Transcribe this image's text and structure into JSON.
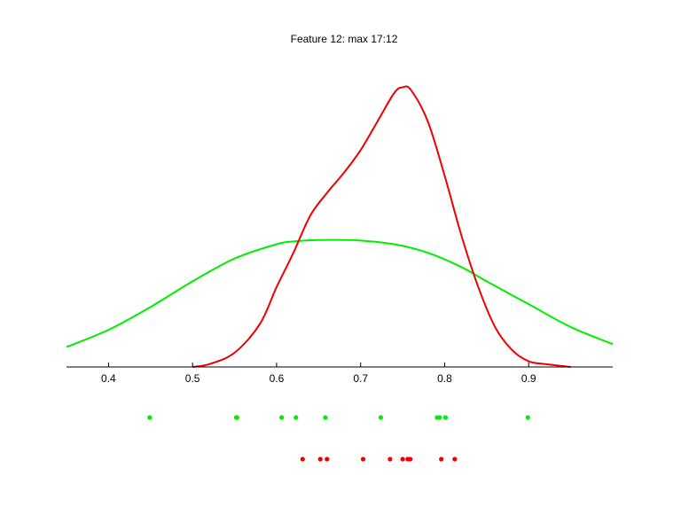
{
  "chart_data": {
    "type": "line",
    "title": "Feature 12: max 17:12",
    "xlim": [
      0.35,
      1.0
    ],
    "ylim": [
      0,
      1
    ],
    "xticks": [
      0.4,
      0.5,
      0.6,
      0.7,
      0.8,
      0.9
    ],
    "xtick_labels": [
      "0.4",
      "0.5",
      "0.6",
      "0.7",
      "0.8",
      "0.9"
    ],
    "y_axis_visible": false,
    "grid": false,
    "series": [
      {
        "color": "#00ee00",
        "x": [
          0.35,
          0.4,
          0.45,
          0.5,
          0.55,
          0.6,
          0.62,
          0.65,
          0.68,
          0.7,
          0.74,
          0.78,
          0.82,
          0.85,
          0.9,
          0.95,
          1.0
        ],
        "y": [
          0.07,
          0.13,
          0.21,
          0.3,
          0.38,
          0.43,
          0.44,
          0.445,
          0.445,
          0.443,
          0.43,
          0.4,
          0.35,
          0.3,
          0.22,
          0.14,
          0.08
        ]
      },
      {
        "color": "#ee0000",
        "x": [
          0.5,
          0.52,
          0.55,
          0.58,
          0.6,
          0.62,
          0.64,
          0.66,
          0.68,
          0.7,
          0.72,
          0.74,
          0.75,
          0.76,
          0.78,
          0.8,
          0.82,
          0.84,
          0.86,
          0.88,
          0.9,
          0.92,
          0.95
        ],
        "y": [
          0.0,
          0.01,
          0.05,
          0.15,
          0.28,
          0.4,
          0.53,
          0.61,
          0.68,
          0.76,
          0.86,
          0.96,
          0.98,
          0.97,
          0.86,
          0.67,
          0.46,
          0.28,
          0.14,
          0.06,
          0.02,
          0.01,
          0.0
        ]
      }
    ],
    "samples": [
      {
        "color": "#00ee00",
        "x": [
          0.449,
          0.552,
          0.553,
          0.606,
          0.623,
          0.658,
          0.724,
          0.791,
          0.794,
          0.801,
          0.899
        ]
      },
      {
        "color": "#ee0000",
        "x": [
          0.631,
          0.652,
          0.66,
          0.703,
          0.735,
          0.75,
          0.756,
          0.759,
          0.796,
          0.812
        ]
      }
    ]
  }
}
